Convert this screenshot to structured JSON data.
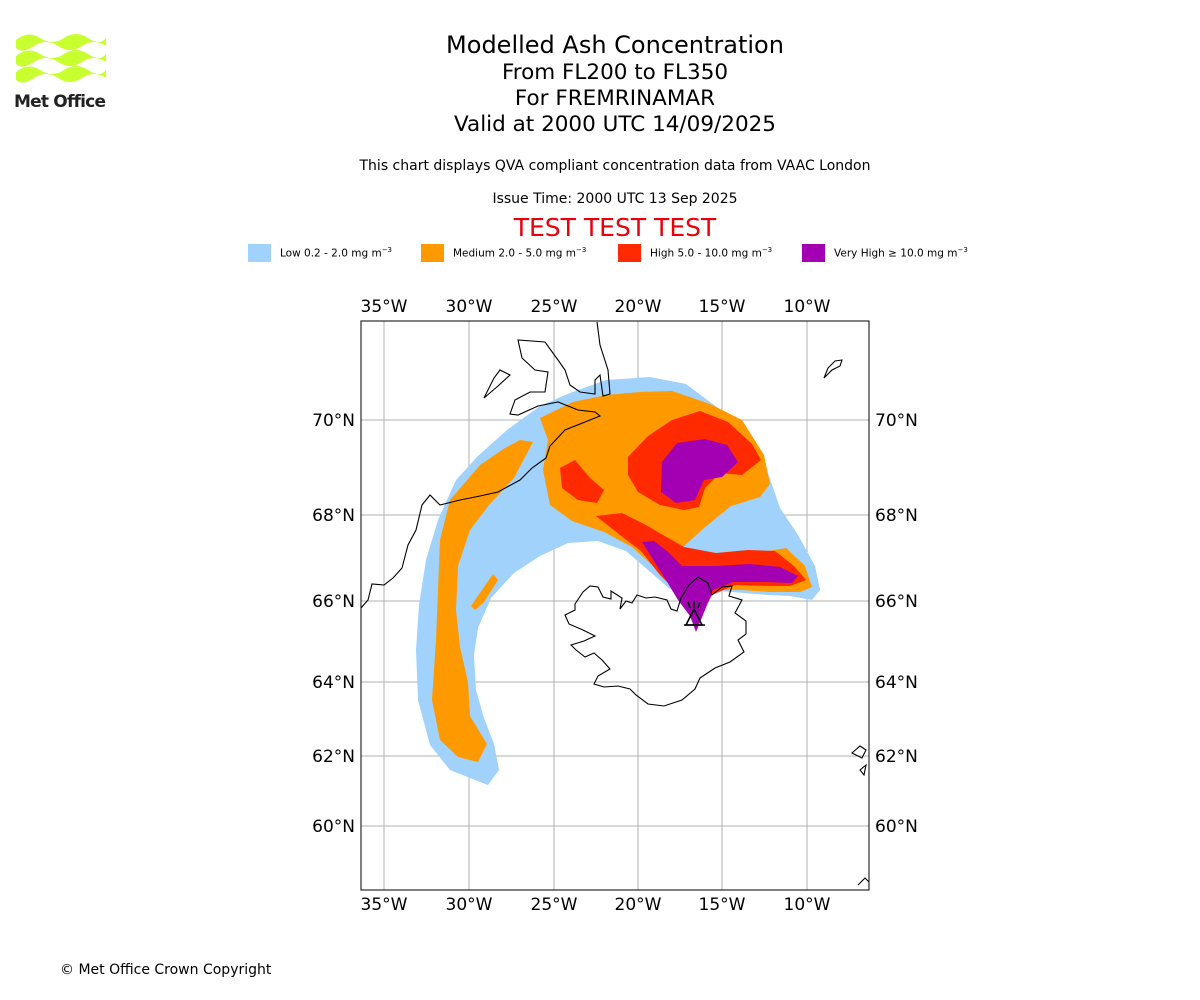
{
  "logo": {
    "text": "Met Office",
    "color": "#c8ff2e"
  },
  "title": {
    "line1": "Modelled Ash Concentration",
    "line2": "From FL200 to FL350",
    "line3": "For FREMRINAMAR",
    "line4": "Valid at 2000 UTC 14/09/2025"
  },
  "subtitle": "This chart displays QVA compliant concentration data from VAAC London",
  "issue_time": "Issue Time: 2000 UTC 13 Sep 2025",
  "test_banner": "TEST TEST TEST",
  "legend": [
    {
      "label": "Low 0.2 - 2.0 mg m",
      "color": "#a0d2fc"
    },
    {
      "label": "Medium 2.0 - 5.0 mg m",
      "color": "#ff9900"
    },
    {
      "label": "High 5.0 - 10.0 mg m",
      "color": "#ff2a00"
    },
    {
      "label": "Very High ≥ 10.0 mg m",
      "color": "#a300b4"
    }
  ],
  "legend_unit_exp": "−3",
  "lon_labels": [
    "35°W",
    "30°W",
    "25°W",
    "20°W",
    "15°W",
    "10°W"
  ],
  "lat_labels": [
    "70°N",
    "68°N",
    "66°N",
    "64°N",
    "62°N",
    "60°N"
  ],
  "volcano": "FREMRINAMAR",
  "copyright": "© Met Office Crown Copyright"
}
